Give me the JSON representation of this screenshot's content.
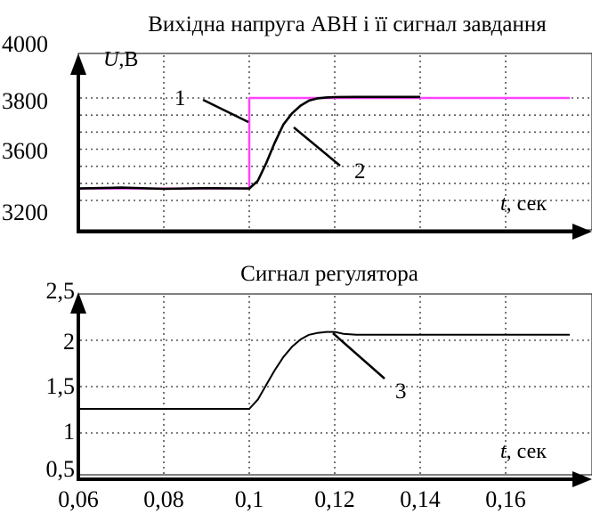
{
  "chart_data": [
    {
      "type": "line",
      "title": "Вихідна напруга АВН і її сигнал завдання",
      "ylabel_var": "U",
      "ylabel_unit": ",В",
      "xlabel_var": "t",
      "xlabel_unit": ", сек",
      "xlim": [
        0.06,
        0.175
      ],
      "ylim": [
        3100,
        4000
      ],
      "yticks": [
        {
          "value": 4000,
          "label": "4000"
        },
        {
          "value": 3800,
          "label": "3800"
        },
        {
          "value": 3600,
          "label": "3600"
        },
        {
          "value": 3200,
          "label": "3200"
        }
      ],
      "grid": true,
      "series": [
        {
          "name": "1",
          "color": "#ff44ff",
          "x": [
            0.06,
            0.1,
            0.1,
            0.175
          ],
          "values": [
            3270,
            3270,
            3800,
            3800
          ]
        },
        {
          "name": "2",
          "color": "#000000",
          "x": [
            0.06,
            0.07,
            0.08,
            0.09,
            0.1,
            0.102,
            0.104,
            0.106,
            0.108,
            0.11,
            0.112,
            0.114,
            0.116,
            0.118,
            0.12,
            0.125,
            0.13,
            0.135,
            0.14
          ],
          "values": [
            3270,
            3275,
            3268,
            3272,
            3270,
            3315,
            3420,
            3540,
            3645,
            3710,
            3755,
            3785,
            3798,
            3803,
            3805,
            3806,
            3806,
            3806,
            3806
          ]
        }
      ],
      "callouts": [
        {
          "label": "1",
          "x": 0.1,
          "y": 3800
        },
        {
          "label": "2",
          "x": 0.108,
          "y": 3645
        }
      ]
    },
    {
      "type": "line",
      "title": "Сигнал регулятора",
      "xlabel_var": "t",
      "xlabel_unit": ", сек",
      "xlim": [
        0.06,
        0.175
      ],
      "ylim": [
        0.5,
        2.5
      ],
      "yticks": [
        {
          "value": 2.5,
          "label": "2,5"
        },
        {
          "value": 2.0,
          "label": "2"
        },
        {
          "value": 1.5,
          "label": "1,5"
        },
        {
          "value": 1.0,
          "label": "1"
        },
        {
          "value": 0.5,
          "label": "0,5"
        }
      ],
      "xticks": [
        {
          "value": 0.06,
          "label": "0,06"
        },
        {
          "value": 0.08,
          "label": "0,08"
        },
        {
          "value": 0.1,
          "label": "0,1"
        },
        {
          "value": 0.12,
          "label": "0,12"
        },
        {
          "value": 0.14,
          "label": "0,14"
        },
        {
          "value": 0.16,
          "label": "0,16"
        }
      ],
      "grid": true,
      "series": [
        {
          "name": "3",
          "color": "#000000",
          "x": [
            0.06,
            0.1,
            0.102,
            0.104,
            0.106,
            0.108,
            0.11,
            0.112,
            0.114,
            0.116,
            0.118,
            0.12,
            0.122,
            0.125,
            0.13,
            0.14,
            0.16,
            0.175
          ],
          "values": [
            1.26,
            1.26,
            1.36,
            1.52,
            1.68,
            1.82,
            1.93,
            2.01,
            2.06,
            2.08,
            2.09,
            2.09,
            2.07,
            2.06,
            2.06,
            2.06,
            2.06,
            2.06
          ]
        }
      ],
      "callouts": [
        {
          "label": "3",
          "x": 0.12,
          "y": 2.09
        }
      ]
    }
  ]
}
